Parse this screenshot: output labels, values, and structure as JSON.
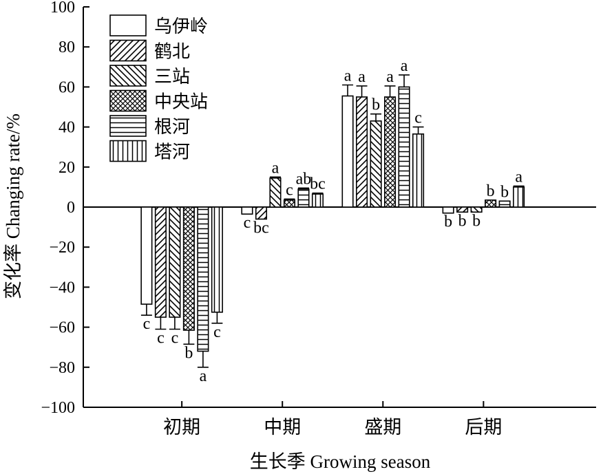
{
  "chart_data": {
    "type": "bar",
    "xlabel": "生长季 Growing season",
    "ylabel": "变化率 Changing rate/%",
    "ylim": [
      -100,
      100
    ],
    "yticks": [
      100,
      80,
      60,
      40,
      20,
      0,
      -20,
      -40,
      -60,
      -80,
      -100
    ],
    "categories": [
      "初期",
      "中期",
      "盛期",
      "后期"
    ],
    "legend_position": "top-left",
    "series": [
      {
        "name": "乌伊岭",
        "pattern": "blank",
        "values": [
          -48.5,
          -3.5,
          55.5,
          -3.0
        ],
        "errors": [
          5.5,
          0,
          5.5,
          0
        ],
        "labels": [
          "c",
          "c",
          "a",
          "b"
        ]
      },
      {
        "name": "鹤北",
        "pattern": "diag-up",
        "values": [
          -55.0,
          -6.0,
          55.0,
          -2.5
        ],
        "errors": [
          6.0,
          0,
          5.5,
          0
        ],
        "labels": [
          "c",
          "bc",
          "a",
          "b"
        ]
      },
      {
        "name": "三站",
        "pattern": "diag-down",
        "values": [
          -55.0,
          14.5,
          43.0,
          -2.5
        ],
        "errors": [
          6.0,
          0.5,
          3.5,
          0
        ],
        "labels": [
          "c",
          "a",
          "b",
          "b"
        ]
      },
      {
        "name": "中央站",
        "pattern": "cross",
        "values": [
          -61.5,
          3.5,
          55.0,
          3.5
        ],
        "errors": [
          7.0,
          0.5,
          5.5,
          0
        ],
        "labels": [
          "b",
          "c",
          "a",
          "b"
        ]
      },
      {
        "name": "根河",
        "pattern": "horizontal",
        "values": [
          -72.0,
          9.0,
          60.0,
          3.0
        ],
        "errors": [
          8.0,
          0.5,
          6.0,
          0
        ],
        "labels": [
          "a",
          "ab",
          "a",
          "b"
        ]
      },
      {
        "name": "塔河",
        "pattern": "vertical",
        "values": [
          -52.5,
          6.5,
          36.5,
          10.0
        ],
        "errors": [
          5.5,
          0.5,
          3.5,
          0.5
        ],
        "labels": [
          "c",
          "bc",
          "c",
          "a"
        ]
      }
    ]
  }
}
